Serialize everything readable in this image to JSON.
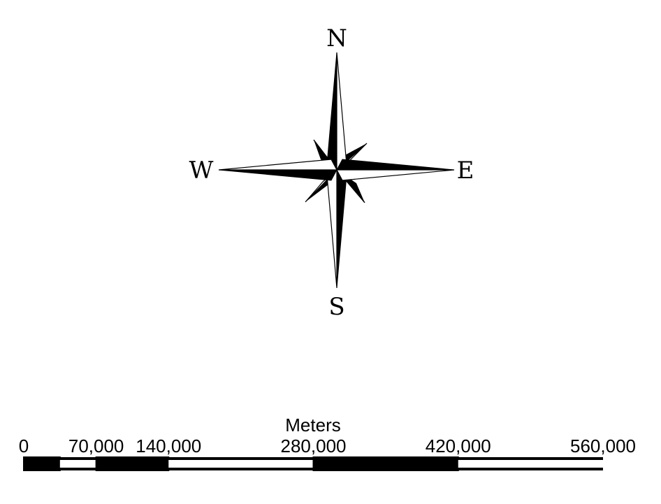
{
  "compass": {
    "north": "N",
    "south": "S",
    "east": "E",
    "west": "W"
  },
  "scale_bar": {
    "units": "Meters",
    "tick_labels": [
      "0",
      "70,000",
      "140,000",
      "280,000",
      "420,000",
      "560,000"
    ],
    "tick_values": [
      0,
      70000,
      140000,
      280000,
      420000,
      560000
    ],
    "minor_division_value": 35000,
    "segment_pattern": [
      "black",
      "white",
      "black",
      "black",
      "white",
      "black",
      "white",
      "black"
    ],
    "colors": {
      "dark": "#000000",
      "light": "#ffffff"
    }
  }
}
